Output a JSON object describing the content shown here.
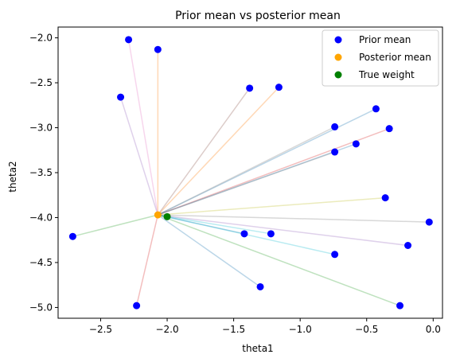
{
  "chart_data": {
    "type": "scatter",
    "title": "Prior mean vs posterior mean",
    "xlabel": "theta1",
    "ylabel": "theta2",
    "xlim": [
      -2.82,
      0.07
    ],
    "ylim": [
      -5.12,
      -1.88
    ],
    "xticks": [
      -2.5,
      -2.0,
      -1.5,
      -1.0,
      -0.5,
      0.0
    ],
    "xtick_labels": [
      "−2.5",
      "−2.0",
      "−1.5",
      "−1.0",
      "−0.5",
      "0.0"
    ],
    "yticks": [
      -2.0,
      -2.5,
      -3.0,
      -3.5,
      -4.0,
      -4.5,
      -5.0
    ],
    "ytick_labels": [
      "−2.0",
      "−2.5",
      "−3.0",
      "−3.5",
      "−4.0",
      "−4.5",
      "−5.0"
    ],
    "grid": false,
    "legend_position": "top-right",
    "series": [
      {
        "name": "Prior mean",
        "color": "#0000ff",
        "points": [
          {
            "x": -2.29,
            "y": -2.02
          },
          {
            "x": -2.07,
            "y": -2.13
          },
          {
            "x": -2.35,
            "y": -2.66
          },
          {
            "x": -1.38,
            "y": -2.56
          },
          {
            "x": -1.16,
            "y": -2.55
          },
          {
            "x": -0.43,
            "y": -2.79
          },
          {
            "x": -0.74,
            "y": -2.99
          },
          {
            "x": -0.33,
            "y": -3.01
          },
          {
            "x": -0.58,
            "y": -3.18
          },
          {
            "x": -0.74,
            "y": -3.27
          },
          {
            "x": -0.36,
            "y": -3.78
          },
          {
            "x": -0.03,
            "y": -4.05
          },
          {
            "x": -2.71,
            "y": -4.21
          },
          {
            "x": -1.42,
            "y": -4.18
          },
          {
            "x": -1.22,
            "y": -4.18
          },
          {
            "x": -0.19,
            "y": -4.31
          },
          {
            "x": -0.74,
            "y": -4.41
          },
          {
            "x": -1.3,
            "y": -4.77
          },
          {
            "x": -2.23,
            "y": -4.98
          },
          {
            "x": -0.25,
            "y": -4.98
          }
        ]
      },
      {
        "name": "Posterior mean",
        "color": "#ffa500",
        "points": [
          {
            "x": -2.07,
            "y": -3.97
          }
        ]
      },
      {
        "name": "True weight",
        "color": "#008000",
        "points": [
          {
            "x": -2.0,
            "y": -3.99
          }
        ]
      }
    ],
    "connector_lines": {
      "description_origin": "Posterior mean",
      "colors": [
        "#e377c2",
        "#ff7f0e",
        "#9467bd",
        "#8c564b",
        "#ff7f0e",
        "#1f77b4",
        "#7f7f7f",
        "#d62728",
        "#1f77b4",
        "#7f7f7f",
        "#bcbd22",
        "#7f7f7f",
        "#2ca02c",
        "#1f77b4",
        "#17becf",
        "#9467bd",
        "#17becf",
        "#1f77b4",
        "#d62728",
        "#2ca02c"
      ]
    }
  }
}
